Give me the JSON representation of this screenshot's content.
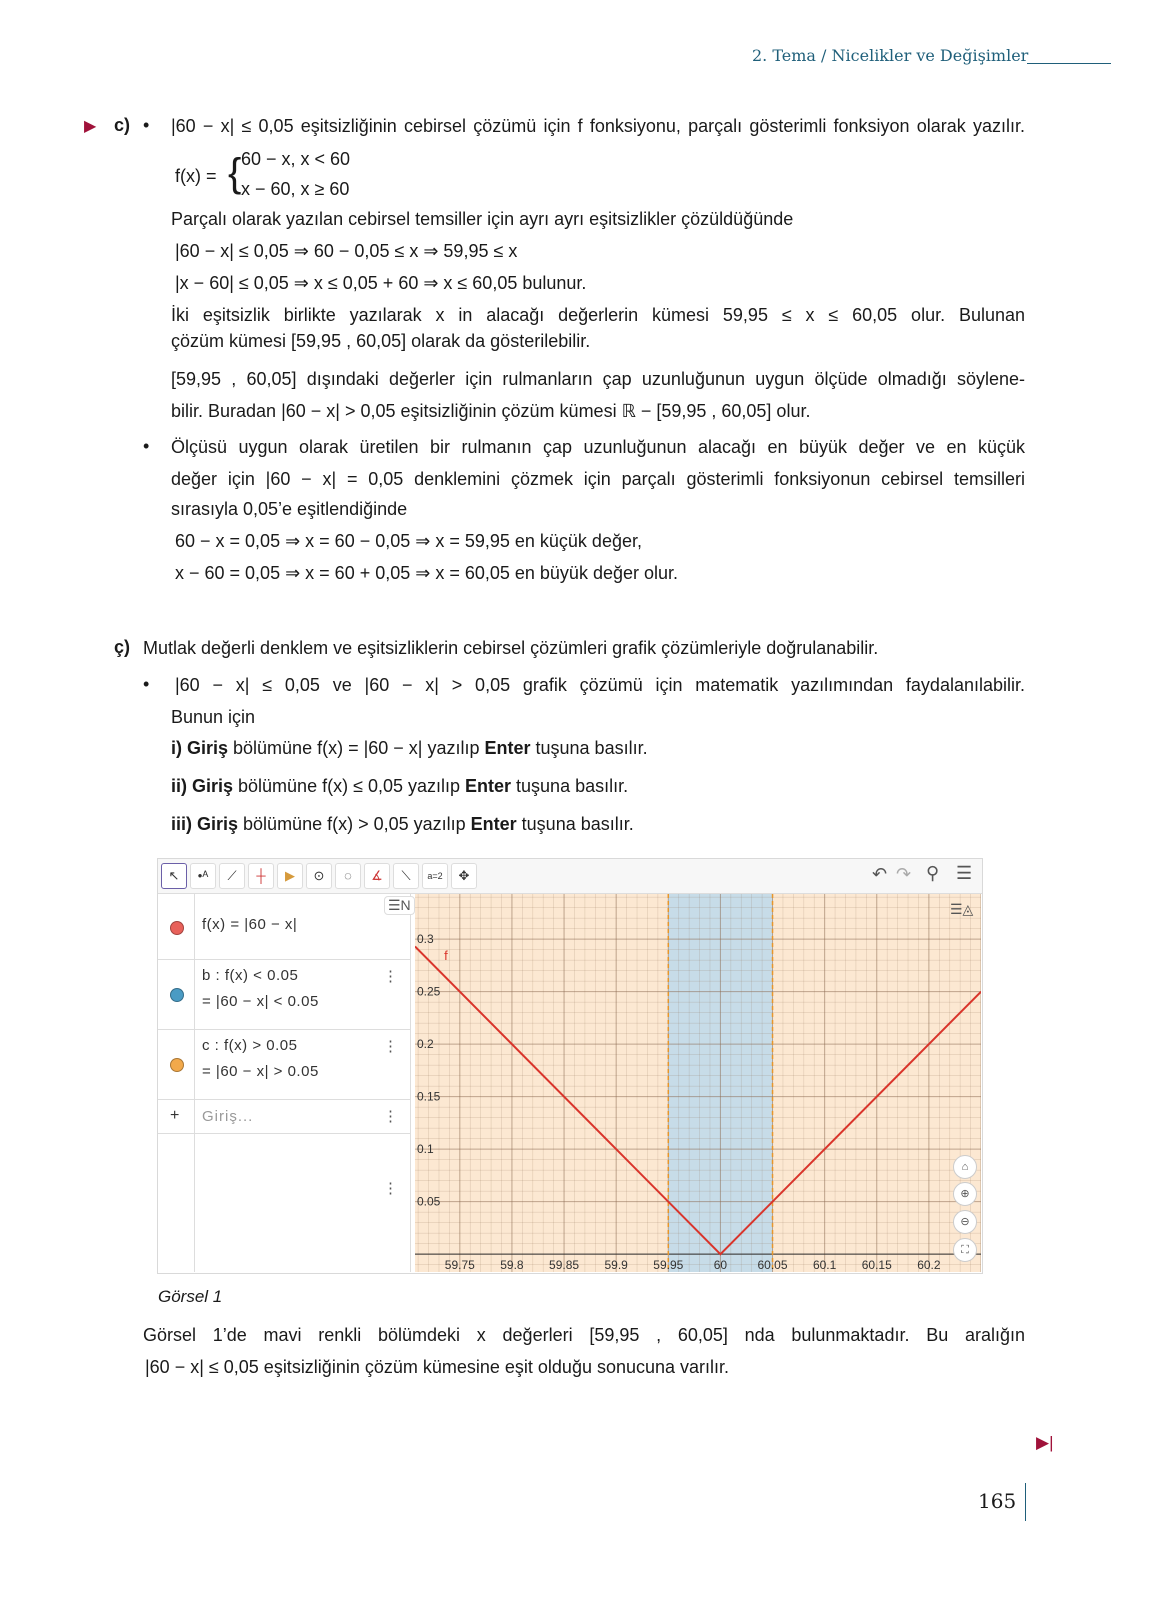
{
  "header": {
    "title": "2. Tema / Nicelikler ve Değişimler"
  },
  "section_c": {
    "marker": "c)",
    "bullet": "•",
    "lines": [
      [
        {
          "t": "|60 − x| ≤ 0,05 eşitsizliğinin cebirsel çözümü için f fonksiyonu, parçalı gösterimli fonksiyon olarak yazılır."
        }
      ],
      [
        {
          "t": "f(x) = "
        }
      ],
      [
        {
          "t": "60 − x,   x < 60"
        }
      ],
      [
        {
          "t": "x − 60,   x ≥ 60"
        }
      ],
      [
        {
          "t": "Parçalı olarak yazılan cebirsel temsiller için ayrı ayrı eşitsizlikler çözüldüğünde"
        }
      ],
      [
        {
          "t": "|60 − x| ≤ 0,05  ⇒  60 − 0,05 ≤ x  ⇒  59,95 ≤ x"
        }
      ],
      [
        {
          "t": "|x − 60| ≤ 0,05  ⇒  x ≤ 0,05 + 60  ⇒  x ≤ 60,05  bulunur."
        }
      ],
      [
        {
          "t": "İki eşitsizlik birlikte yazılarak x in alacağı değerlerin kümesi 59,95 ≤ x ≤ 60,05 olur. Bulunan"
        }
      ],
      [
        {
          "t": "çözüm kümesi [59,95 , 60,05] olarak da gösterilebilir."
        }
      ],
      [
        {
          "t": "[59,95 , 60,05] dışındaki değerler için rulmanların çap uzunluğunun uygun ölçüde olmadığı söylene-"
        }
      ],
      [
        {
          "t": "bilir. Buradan |60 − x| > 0,05 eşitsizliğinin çözüm kümesi ℝ − [59,95 , 60,05] olur."
        }
      ],
      [
        {
          "t": "Ölçüsü uygun olarak üretilen bir rulmanın çap uzunluğunun alacağı en büyük değer ve en küçük"
        }
      ],
      [
        {
          "t": "değer için |60 − x| = 0,05 denklemini çözmek için parçalı gösterimli fonksiyonun cebirsel temsilleri"
        }
      ],
      [
        {
          "t": "sırasıyla 0,05’e eşitlendiğinde"
        }
      ],
      [
        {
          "t": "60 − x = 0,05  ⇒  x = 60 − 0,05  ⇒  x = 59,95  en küçük değer,"
        }
      ],
      [
        {
          "t": "x − 60 = 0,05  ⇒  x = 60 + 0,05  ⇒  x = 60,05  en büyük değer olur."
        }
      ]
    ]
  },
  "section_cc": {
    "marker": "ç)",
    "lines": [
      [
        {
          "t": "Mutlak değerli denklem ve eşitsizliklerin cebirsel çözümleri grafik çözümleriyle doğrulanabilir."
        }
      ],
      [
        {
          "t": "|60 − x| ≤ 0,05 ve |60 − x| > 0,05 grafik çözümü için matematik yazılımından faydalanılabilir."
        }
      ],
      [
        {
          "t": "Bunun için"
        }
      ],
      [
        {
          "t": "i) Giriş",
          "b": true
        },
        {
          "t": " bölümüne  f(x) = |60 − x|  yazılıp "
        },
        {
          "t": "Enter",
          "b": true
        },
        {
          "t": " tuşuna basılır."
        }
      ],
      [
        {
          "t": "ii) Giriş",
          "b": true
        },
        {
          "t": " bölümüne  f(x) ≤ 0,05  yazılıp "
        },
        {
          "t": "Enter",
          "b": true
        },
        {
          "t": " tuşuna basılır."
        }
      ],
      [
        {
          "t": "iii) Giriş",
          "b": true
        },
        {
          "t": " bölümüne  f(x) > 0,05  yazılıp "
        },
        {
          "t": "Enter",
          "b": true
        },
        {
          "t": " tuşuna basılır."
        }
      ]
    ]
  },
  "geogebra": {
    "algebra": [
      {
        "l1": "f(x) = |60 − x|",
        "l2": "",
        "color": "#e8615a"
      },
      {
        "l1": "b : f(x) < 0.05",
        "l2": "= |60 − x| < 0.05",
        "color": "#4a9bc4"
      },
      {
        "l1": "c : f(x) > 0.05",
        "l2": "= |60 − x| > 0.05",
        "color": "#f2a94b"
      }
    ],
    "input_placeholder": "Giriş...",
    "curve_label": "f",
    "x_ticks": [
      "59.75",
      "59.8",
      "59.85",
      "59.9",
      "59.95",
      "60",
      "60.05",
      "60.1",
      "60.15",
      "60.2"
    ],
    "y_ticks": [
      "0.05",
      "0.1",
      "0.15",
      "0.2",
      "0.25",
      "0.3"
    ],
    "x_range": [
      59.707,
      60.25
    ],
    "y_range": [
      -0.017,
      0.343
    ],
    "shaded_interval": [
      59.95,
      60.05
    ],
    "colors": {
      "curve": "#d9342b",
      "shade": "#c7dce8",
      "bg": "#fce8d2",
      "dashed": "#e8962a",
      "grid": "#8a6a50"
    }
  },
  "caption": "Görsel 1",
  "conclusion": [
    "Görsel 1’de mavi renkli bölümdeki x değerleri [59,95 , 60,05] nda bulunmaktadır. Bu aralığın",
    "|60 − x| ≤ 0,05 eşitsizliğinin çözüm kümesine eşit olduğu sonucuna varılır."
  ],
  "page_number": "165"
}
